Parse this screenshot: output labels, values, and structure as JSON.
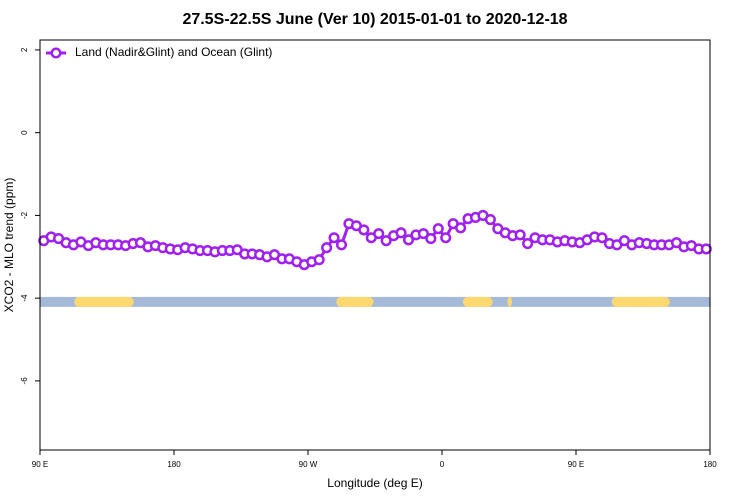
{
  "chart_data": {
    "type": "line",
    "title": "27.5S-22.5S June (Ver 10)   2015-01-01 to 2020-12-18",
    "x_label": "Longitude (deg E)",
    "y_label": "XCO2 - MLO trend (ppm)",
    "xlim": [
      90,
      540
    ],
    "ylim": [
      -7.67,
      2.24
    ],
    "xticks": [
      {
        "value": 90,
        "label": "90 E"
      },
      {
        "value": 180,
        "label": "180"
      },
      {
        "value": 270,
        "label": "90 W"
      },
      {
        "value": 360,
        "label": "0"
      },
      {
        "value": 450,
        "label": "90 E"
      },
      {
        "value": 540,
        "label": "180"
      }
    ],
    "yticks": [
      2,
      0,
      -2,
      -4,
      -6
    ],
    "legend": "top-left",
    "x": [
      92.5,
      97.5,
      102.5,
      107.5,
      112.5,
      117.5,
      122.5,
      127.5,
      132.5,
      137.5,
      142.5,
      147.5,
      152.5,
      157.5,
      162.5,
      167.5,
      172.5,
      177.5,
      182.5,
      187.5,
      192.5,
      197.5,
      202.5,
      207.5,
      212.5,
      217.5,
      222.5,
      227.5,
      232.5,
      237.5,
      242.5,
      247.5,
      252.5,
      257.5,
      262.5,
      267.5,
      272.5,
      277.5,
      282.5,
      287.5,
      292.5,
      297.5,
      302.5,
      307.5,
      312.5,
      317.5,
      322.5,
      327.5,
      332.5,
      337.5,
      342.5,
      347.5,
      352.5,
      357.5,
      362.5,
      367.5,
      372.5,
      377.5,
      382.5,
      387.5,
      392.5,
      397.5,
      402.5,
      407.5,
      412.5,
      417.5,
      422.5,
      427.5,
      432.5,
      437.5,
      442.5,
      447.5,
      452.5,
      457.5,
      462.5,
      467.5,
      472.5,
      477.5,
      482.5,
      487.5,
      492.5,
      497.5,
      502.5,
      507.5,
      512.5,
      517.5,
      522.5,
      527.5,
      532.5,
      537.5
    ],
    "series": [
      {
        "name": "Land (Nadir&Glint) and Ocean (Glint)",
        "color": "#a020f0",
        "values": [
          -2.61,
          -2.52,
          -2.56,
          -2.66,
          -2.71,
          -2.64,
          -2.73,
          -2.66,
          -2.71,
          -2.71,
          -2.71,
          -2.73,
          -2.68,
          -2.66,
          -2.76,
          -2.73,
          -2.78,
          -2.81,
          -2.83,
          -2.78,
          -2.81,
          -2.85,
          -2.85,
          -2.88,
          -2.85,
          -2.85,
          -2.83,
          -2.93,
          -2.93,
          -2.95,
          -3.0,
          -2.95,
          -3.05,
          -3.05,
          -3.12,
          -3.19,
          -3.12,
          -3.07,
          -2.78,
          -2.54,
          -2.71,
          -2.2,
          -2.25,
          -2.35,
          -2.54,
          -2.44,
          -2.61,
          -2.49,
          -2.42,
          -2.59,
          -2.47,
          -2.44,
          -2.56,
          -2.32,
          -2.54,
          -2.2,
          -2.3,
          -2.08,
          -2.05,
          -2.0,
          -2.1,
          -2.32,
          -2.42,
          -2.49,
          -2.47,
          -2.68,
          -2.54,
          -2.59,
          -2.59,
          -2.64,
          -2.61,
          -2.64,
          -2.66,
          -2.59,
          -2.52,
          -2.54,
          -2.68,
          -2.71,
          -2.61,
          -2.71,
          -2.66,
          -2.68,
          -2.71,
          -2.71,
          -2.71,
          -2.66,
          -2.76,
          -2.73,
          -2.81,
          -2.81
        ]
      }
    ],
    "mask": {
      "y": [
        -3.97,
        -4.21
      ],
      "ocean_color": "#a5b9d9",
      "land_color": "#ffd970",
      "land": [
        [
          113,
          153
        ],
        [
          289,
          314
        ],
        [
          374,
          394
        ],
        [
          404,
          407
        ],
        [
          474,
          513
        ]
      ]
    }
  }
}
